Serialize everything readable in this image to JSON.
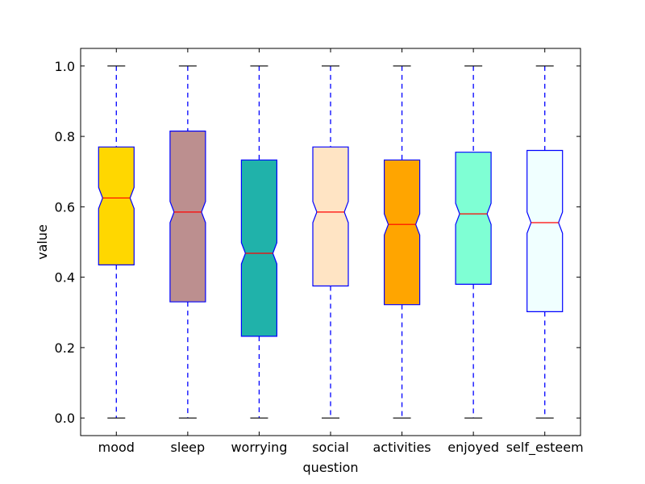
{
  "chart_data": {
    "type": "boxplot",
    "notched": true,
    "xlabel": "question",
    "ylabel": "value",
    "ylim": [
      -0.05,
      1.05
    ],
    "yticks": [
      0.0,
      0.2,
      0.4,
      0.6,
      0.8,
      1.0
    ],
    "ytick_labels": [
      "0.0",
      "0.2",
      "0.4",
      "0.6",
      "0.8",
      "1.0"
    ],
    "whisker_style": "dashed",
    "box_edge_color": "#0000ff",
    "whisker_color": "#0000ff",
    "median_color": "#ff0000",
    "cap_color": "#000000",
    "categories": [
      "mood",
      "sleep",
      "worrying",
      "social",
      "activities",
      "enjoyed",
      "self_esteem"
    ],
    "boxes": [
      {
        "name": "mood",
        "min": 0.0,
        "q1": 0.435,
        "median": 0.625,
        "q3": 0.77,
        "max": 1.0,
        "color": "#ffd700"
      },
      {
        "name": "sleep",
        "min": 0.0,
        "q1": 0.33,
        "median": 0.585,
        "q3": 0.815,
        "max": 1.0,
        "color": "#bc8f8f"
      },
      {
        "name": "worrying",
        "min": 0.0,
        "q1": 0.232,
        "median": 0.468,
        "q3": 0.733,
        "max": 1.0,
        "color": "#20b2aa"
      },
      {
        "name": "social",
        "min": 0.0,
        "q1": 0.375,
        "median": 0.585,
        "q3": 0.77,
        "max": 1.0,
        "color": "#ffe4c4"
      },
      {
        "name": "activities",
        "min": 0.0,
        "q1": 0.322,
        "median": 0.55,
        "q3": 0.733,
        "max": 1.0,
        "color": "#ffa500"
      },
      {
        "name": "enjoyed",
        "min": 0.0,
        "q1": 0.38,
        "median": 0.58,
        "q3": 0.755,
        "max": 1.0,
        "color": "#7fffd4"
      },
      {
        "name": "self_esteem",
        "min": 0.0,
        "q1": 0.302,
        "median": 0.555,
        "q3": 0.76,
        "max": 1.0,
        "color": "#f0ffff"
      }
    ]
  }
}
